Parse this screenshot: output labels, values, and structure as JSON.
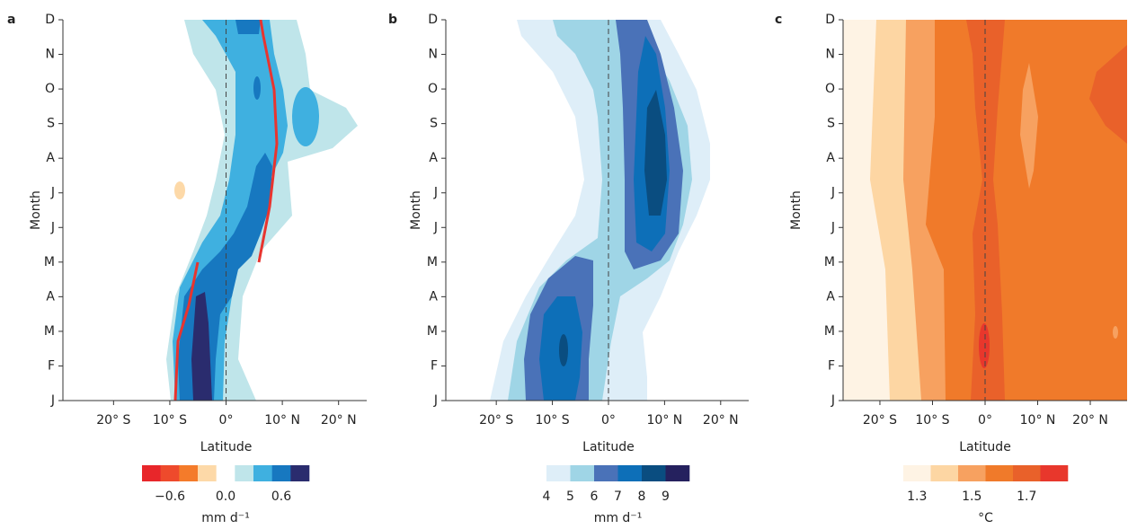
{
  "chart_data": [
    {
      "type": "contour",
      "panel_label": "a",
      "y_label": "Month",
      "x_label": "Latitude",
      "categories": [
        "J",
        "F",
        "M",
        "A",
        "M",
        "J",
        "J",
        "A",
        "S",
        "O",
        "N",
        "D"
      ],
      "xlim": [
        -29,
        25
      ],
      "xticks": [
        {
          "value": -20,
          "label": "20° S"
        },
        {
          "value": -10,
          "label": "10° S"
        },
        {
          "value": 0,
          "label": "0°"
        },
        {
          "value": 10,
          "label": "10° N"
        },
        {
          "value": 20,
          "label": "20° N"
        }
      ],
      "colorbar": {
        "colors": [
          "#e8262a",
          "#ee4a2c",
          "#f47b2a",
          "#fdd9a8",
          "#ffffff",
          "#bfe5ea",
          "#3fb0e0",
          "#1778c0",
          "#2a2c6e"
        ],
        "range": [
          -0.9,
          0.9
        ],
        "ticks": [
          {
            "value": -0.6,
            "label": "−0.6"
          },
          {
            "value": 0.0,
            "label": "0.0"
          },
          {
            "value": 0.6,
            "label": "0.6"
          }
        ],
        "unit": "mm d⁻¹"
      }
    },
    {
      "type": "contour",
      "panel_label": "b",
      "y_label": "Month",
      "x_label": "Latitude",
      "categories": [
        "J",
        "F",
        "M",
        "A",
        "M",
        "J",
        "J",
        "A",
        "S",
        "O",
        "N",
        "D"
      ],
      "xlim": [
        -29,
        25
      ],
      "xticks": [
        {
          "value": -20,
          "label": "20° S"
        },
        {
          "value": -10,
          "label": "10° S"
        },
        {
          "value": 0,
          "label": "0°"
        },
        {
          "value": 10,
          "label": "10° N"
        },
        {
          "value": 20,
          "label": "20° N"
        }
      ],
      "colorbar": {
        "colors": [
          "#deeef8",
          "#9fd5e6",
          "#4a72b8",
          "#0d6fb8",
          "#0a4d80",
          "#25215e"
        ],
        "range": [
          4,
          10
        ],
        "ticks": [
          4,
          5,
          6,
          7,
          8,
          9
        ],
        "unit": "mm d⁻¹"
      }
    },
    {
      "type": "contour",
      "panel_label": "c",
      "y_label": "Month",
      "x_label": "Latitude",
      "categories": [
        "J",
        "F",
        "M",
        "A",
        "M",
        "J",
        "J",
        "A",
        "S",
        "O",
        "N",
        "D"
      ],
      "xlim": [
        -27,
        27
      ],
      "xticks": [
        {
          "value": -20,
          "label": "20° S"
        },
        {
          "value": -10,
          "label": "10° S"
        },
        {
          "value": 0,
          "label": "0°"
        },
        {
          "value": 10,
          "label": "10° N"
        },
        {
          "value": 20,
          "label": "20° N"
        }
      ],
      "colorbar": {
        "colors": [
          "#fef3e4",
          "#fdd6a3",
          "#f7a160",
          "#f07a2a",
          "#e9612a",
          "#e8372c"
        ],
        "range": [
          1.25,
          1.85
        ],
        "ticks": [
          1.3,
          1.5,
          1.7
        ],
        "unit": "°C"
      }
    }
  ]
}
